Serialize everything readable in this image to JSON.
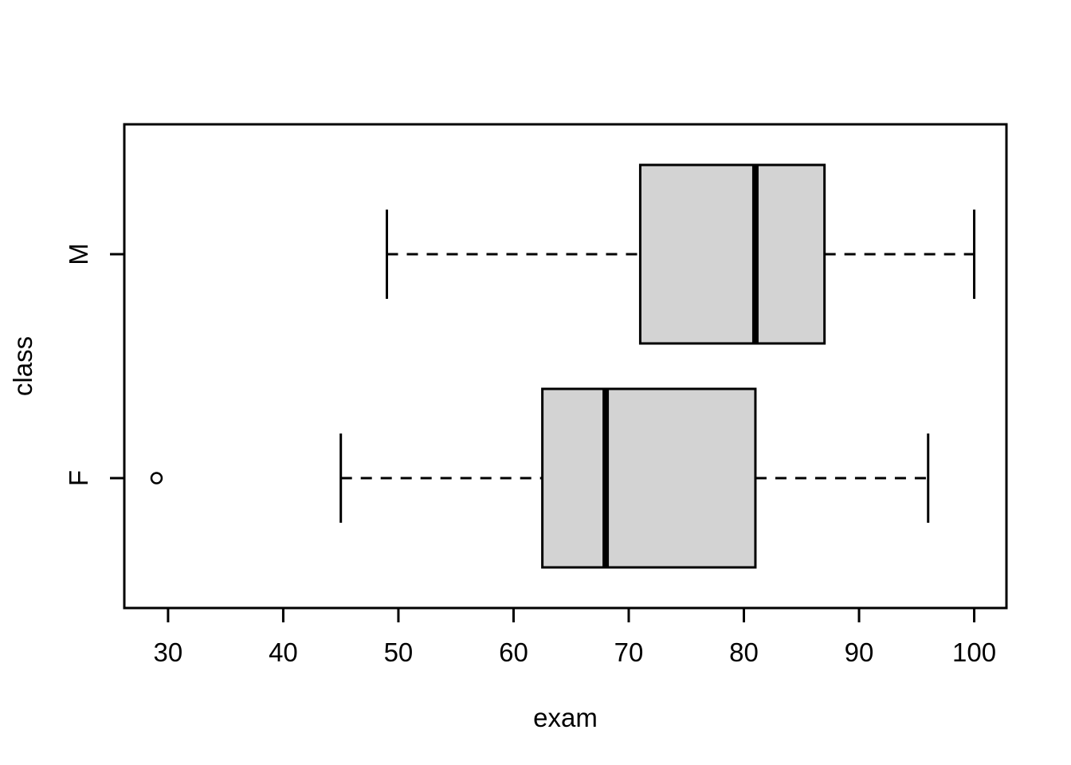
{
  "figure": {
    "background": "#ffffff"
  },
  "chart_data": {
    "type": "boxplot",
    "orientation": "horizontal",
    "title": "",
    "xlabel": "exam",
    "ylabel": "class",
    "x_ticks": [
      30,
      40,
      50,
      60,
      70,
      80,
      90,
      100
    ],
    "xlim": [
      26.2,
      102.8
    ],
    "categories": [
      "F",
      "M"
    ],
    "series": [
      {
        "name": "F",
        "lower_whisker": 45,
        "q1": 62.5,
        "median": 68,
        "q3": 81,
        "upper_whisker": 96,
        "outliers": [
          29
        ]
      },
      {
        "name": "M",
        "lower_whisker": 49,
        "q1": 71,
        "median": 81,
        "q3": 87,
        "upper_whisker": 100,
        "outliers": []
      }
    ],
    "style": {
      "box_fill": "#d3d3d3",
      "line_color": "#000000",
      "background": "#ffffff",
      "whisker_linestyle": "dashed"
    },
    "grid": false,
    "legend": "none"
  }
}
